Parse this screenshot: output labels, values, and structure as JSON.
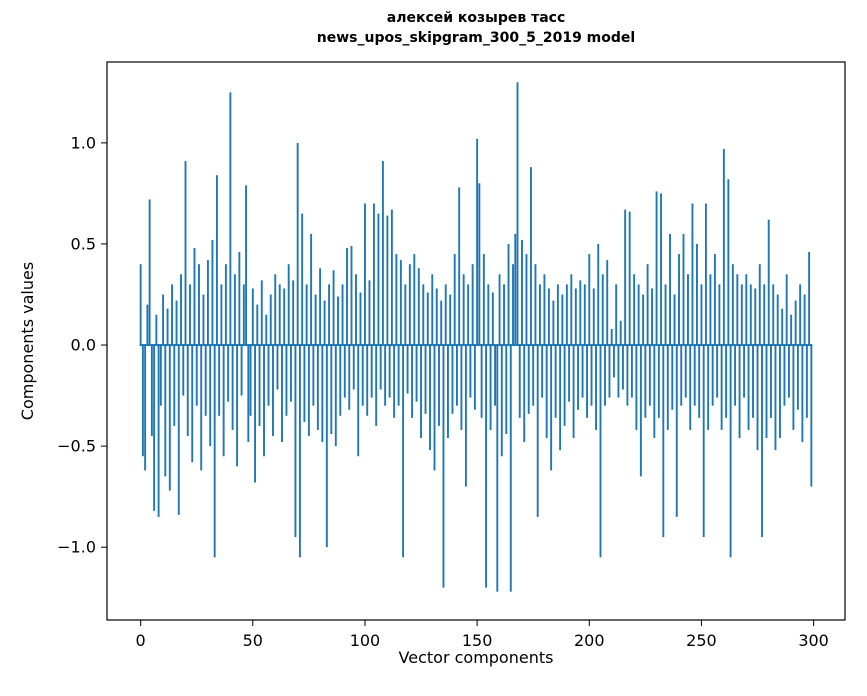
{
  "figure": {
    "title_line1": "алексей козырев тасс",
    "title_line2": "news_upos_skipgram_300_5_2019 model",
    "xlabel": "Vector components",
    "ylabel": "Components values"
  },
  "chart_data": {
    "type": "bar",
    "title": "алексей козырев тасс\nnews_upos_skipgram_300_5_2019 model",
    "xlabel": "Vector components",
    "ylabel": "Components values",
    "legend": "none",
    "grid": false,
    "bar_color": "#1f77b4",
    "axis_color": "#000000",
    "xlim": [
      -15,
      314
    ],
    "ylim": [
      -1.36,
      1.4
    ],
    "xticks": [
      0,
      50,
      100,
      150,
      200,
      250,
      300
    ],
    "yticks": [
      -1.0,
      -0.5,
      0.0,
      0.5,
      1.0
    ],
    "x_range": [
      0,
      299
    ],
    "values": [
      0.4,
      -0.55,
      -0.62,
      0.2,
      0.72,
      -0.45,
      -0.82,
      0.15,
      -0.85,
      -0.3,
      0.25,
      -0.65,
      0.18,
      -0.72,
      0.3,
      -0.4,
      0.22,
      -0.84,
      0.35,
      -0.25,
      0.91,
      -0.45,
      0.3,
      -0.58,
      0.48,
      -0.3,
      0.4,
      -0.62,
      0.25,
      -0.35,
      0.42,
      -0.5,
      0.52,
      -1.05,
      0.84,
      -0.35,
      0.3,
      -0.55,
      0.4,
      -0.28,
      1.25,
      -0.42,
      0.35,
      -0.6,
      0.46,
      -0.25,
      0.3,
      0.79,
      -0.48,
      -0.35,
      0.28,
      -0.68,
      0.2,
      -0.4,
      0.32,
      -0.55,
      0.15,
      -0.3,
      0.25,
      -0.45,
      0.35,
      -0.22,
      0.3,
      -0.48,
      0.28,
      -0.35,
      0.4,
      -0.28,
      0.32,
      -0.95,
      1.0,
      -1.05,
      0.65,
      -0.38,
      0.3,
      -0.45,
      0.55,
      -0.3,
      0.25,
      -0.42,
      0.38,
      -0.48,
      0.22,
      -1.0,
      0.3,
      -0.44,
      0.37,
      -0.5,
      0.24,
      -0.35,
      0.3,
      -0.26,
      0.48,
      -0.32,
      0.49,
      -0.22,
      0.35,
      -0.55,
      0.26,
      -0.3,
      0.7,
      -0.35,
      0.32,
      -0.26,
      0.7,
      -0.4,
      0.65,
      -0.22,
      0.91,
      -0.3,
      0.64,
      -0.26,
      0.67,
      -0.36,
      0.45,
      -0.3,
      0.42,
      -1.05,
      0.3,
      -0.24,
      0.4,
      -0.36,
      0.45,
      -0.28,
      0.38,
      -0.46,
      0.3,
      -0.34,
      0.26,
      -0.52,
      0.35,
      -0.62,
      0.28,
      -0.4,
      0.22,
      -1.2,
      0.3,
      -0.46,
      0.25,
      -0.34,
      0.45,
      -0.3,
      0.78,
      -0.42,
      0.35,
      -0.7,
      0.3,
      -0.26,
      0.4,
      -0.32,
      1.02,
      0.8,
      -0.36,
      0.45,
      -1.2,
      0.3,
      -0.42,
      0.26,
      -0.3,
      -1.22,
      0.35,
      -0.55,
      0.3,
      -0.44,
      0.5,
      -1.22,
      0.4,
      0.55,
      1.3,
      -0.36,
      0.52,
      -0.48,
      0.45,
      -0.34,
      0.88,
      -0.3,
      0.4,
      -0.85,
      0.3,
      -0.26,
      0.35,
      -0.46,
      0.28,
      -0.62,
      0.22,
      -0.36,
      0.3,
      -0.52,
      0.25,
      -0.4,
      0.3,
      -0.28,
      0.35,
      -0.46,
      0.28,
      -0.32,
      0.32,
      -0.26,
      0.3,
      -0.36,
      0.45,
      -0.3,
      0.28,
      -0.42,
      0.5,
      -1.05,
      0.35,
      -0.3,
      0.42,
      -0.26,
      0.08,
      -0.16,
      0.3,
      -0.26,
      0.12,
      -0.22,
      0.67,
      -0.3,
      0.66,
      -0.26,
      0.35,
      -0.42,
      0.3,
      -0.65,
      0.25,
      -0.36,
      0.4,
      -0.3,
      0.28,
      -0.46,
      0.76,
      -0.36,
      0.75,
      -0.95,
      0.3,
      -0.42,
      0.55,
      -0.32,
      0.25,
      -0.85,
      0.45,
      -0.3,
      0.55,
      -0.26,
      0.35,
      -0.42,
      0.7,
      -0.3,
      0.5,
      -0.36,
      0.3,
      -0.95,
      0.7,
      -0.42,
      0.35,
      -0.3,
      0.45,
      -0.26,
      0.3,
      -0.42,
      0.97,
      -0.36,
      0.82,
      -1.05,
      0.4,
      -0.3,
      0.35,
      -0.46,
      0.3,
      -0.26,
      0.35,
      -0.42,
      0.3,
      -0.36,
      0.28,
      -0.52,
      0.4,
      -0.95,
      0.3,
      -0.46,
      0.62,
      -0.36,
      0.3,
      -0.52,
      0.25,
      -0.46,
      0.18,
      -0.3,
      0.35,
      -0.26,
      0.15,
      -0.42,
      0.22,
      -0.32,
      0.3,
      -0.48,
      0.25,
      -0.36,
      0.46,
      -0.7
    ]
  }
}
